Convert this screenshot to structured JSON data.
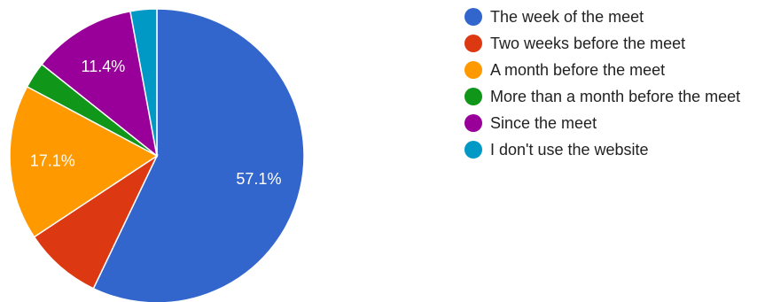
{
  "chart_data": {
    "type": "pie",
    "title": "",
    "categories": [
      "The week of the meet",
      "Two weeks before the meet",
      "A month before the meet",
      "More than a month before the meet",
      "Since the meet",
      "I don't use the website"
    ],
    "values": [
      57.1,
      8.6,
      17.1,
      2.9,
      11.4,
      2.9
    ],
    "slice_labels": [
      "57.1%",
      "",
      "17.1%",
      "",
      "11.4%",
      ""
    ],
    "colors": [
      "#3366cc",
      "#dc3912",
      "#ff9900",
      "#109618",
      "#990099",
      "#0099c6"
    ],
    "start_angle_deg": 90,
    "direction": "clockwise",
    "legend_position": "right"
  }
}
